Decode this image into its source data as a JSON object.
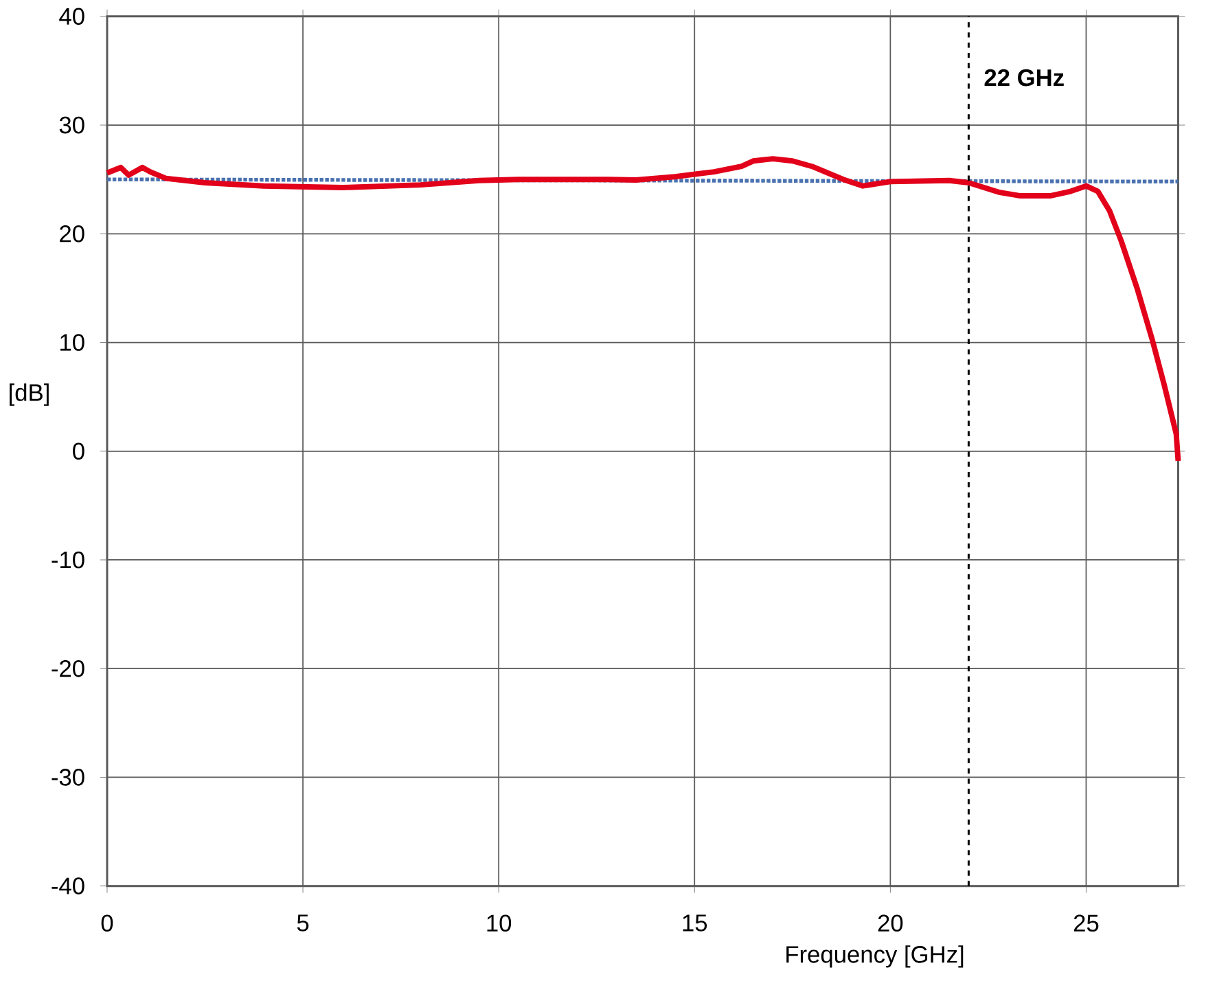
{
  "chart_data": {
    "type": "line",
    "xlabel": "Frequency [GHz]",
    "ylabel": "[dB]",
    "xlim": [
      0,
      27.35
    ],
    "ylim": [
      -40,
      40
    ],
    "xticks": [
      0,
      5,
      10,
      15,
      20,
      25
    ],
    "yticks": [
      -40,
      -30,
      -20,
      -10,
      0,
      10,
      20,
      30,
      40
    ],
    "grid": true,
    "series": [
      {
        "color": "#4a72b0",
        "line_style": "dotted",
        "x": [
          0,
          27.35
        ],
        "values": [
          25.0,
          24.8
        ]
      },
      {
        "color": "#e2001a",
        "line_style": "solid",
        "x": [
          0,
          0.35,
          0.55,
          0.9,
          1.1,
          1.5,
          2.5,
          4,
          6,
          8,
          9.5,
          10.5,
          12.8,
          13.5,
          14.5,
          15.5,
          16.2,
          16.5,
          17,
          17.5,
          18,
          18.8,
          19.3,
          20,
          21.5,
          22,
          22.8,
          23.3,
          24.1,
          24.6,
          25.0,
          25.3,
          25.6,
          25.9,
          26.3,
          26.7,
          27.0,
          27.3,
          27.35
        ],
        "values": [
          25.6,
          26.1,
          25.4,
          26.1,
          25.7,
          25.1,
          24.7,
          24.4,
          24.25,
          24.5,
          24.9,
          25.0,
          25.0,
          24.95,
          25.25,
          25.7,
          26.2,
          26.7,
          26.9,
          26.7,
          26.2,
          25.0,
          24.4,
          24.8,
          24.9,
          24.7,
          23.8,
          23.5,
          23.5,
          23.9,
          24.4,
          23.9,
          22.1,
          19.3,
          15.0,
          10.1,
          6.0,
          1.6,
          -0.9
        ]
      }
    ],
    "ref_lines": [
      {
        "axis": "x",
        "value": 22,
        "label": "22 GHz",
        "color": "#000000",
        "line_style": "dashed"
      }
    ]
  }
}
